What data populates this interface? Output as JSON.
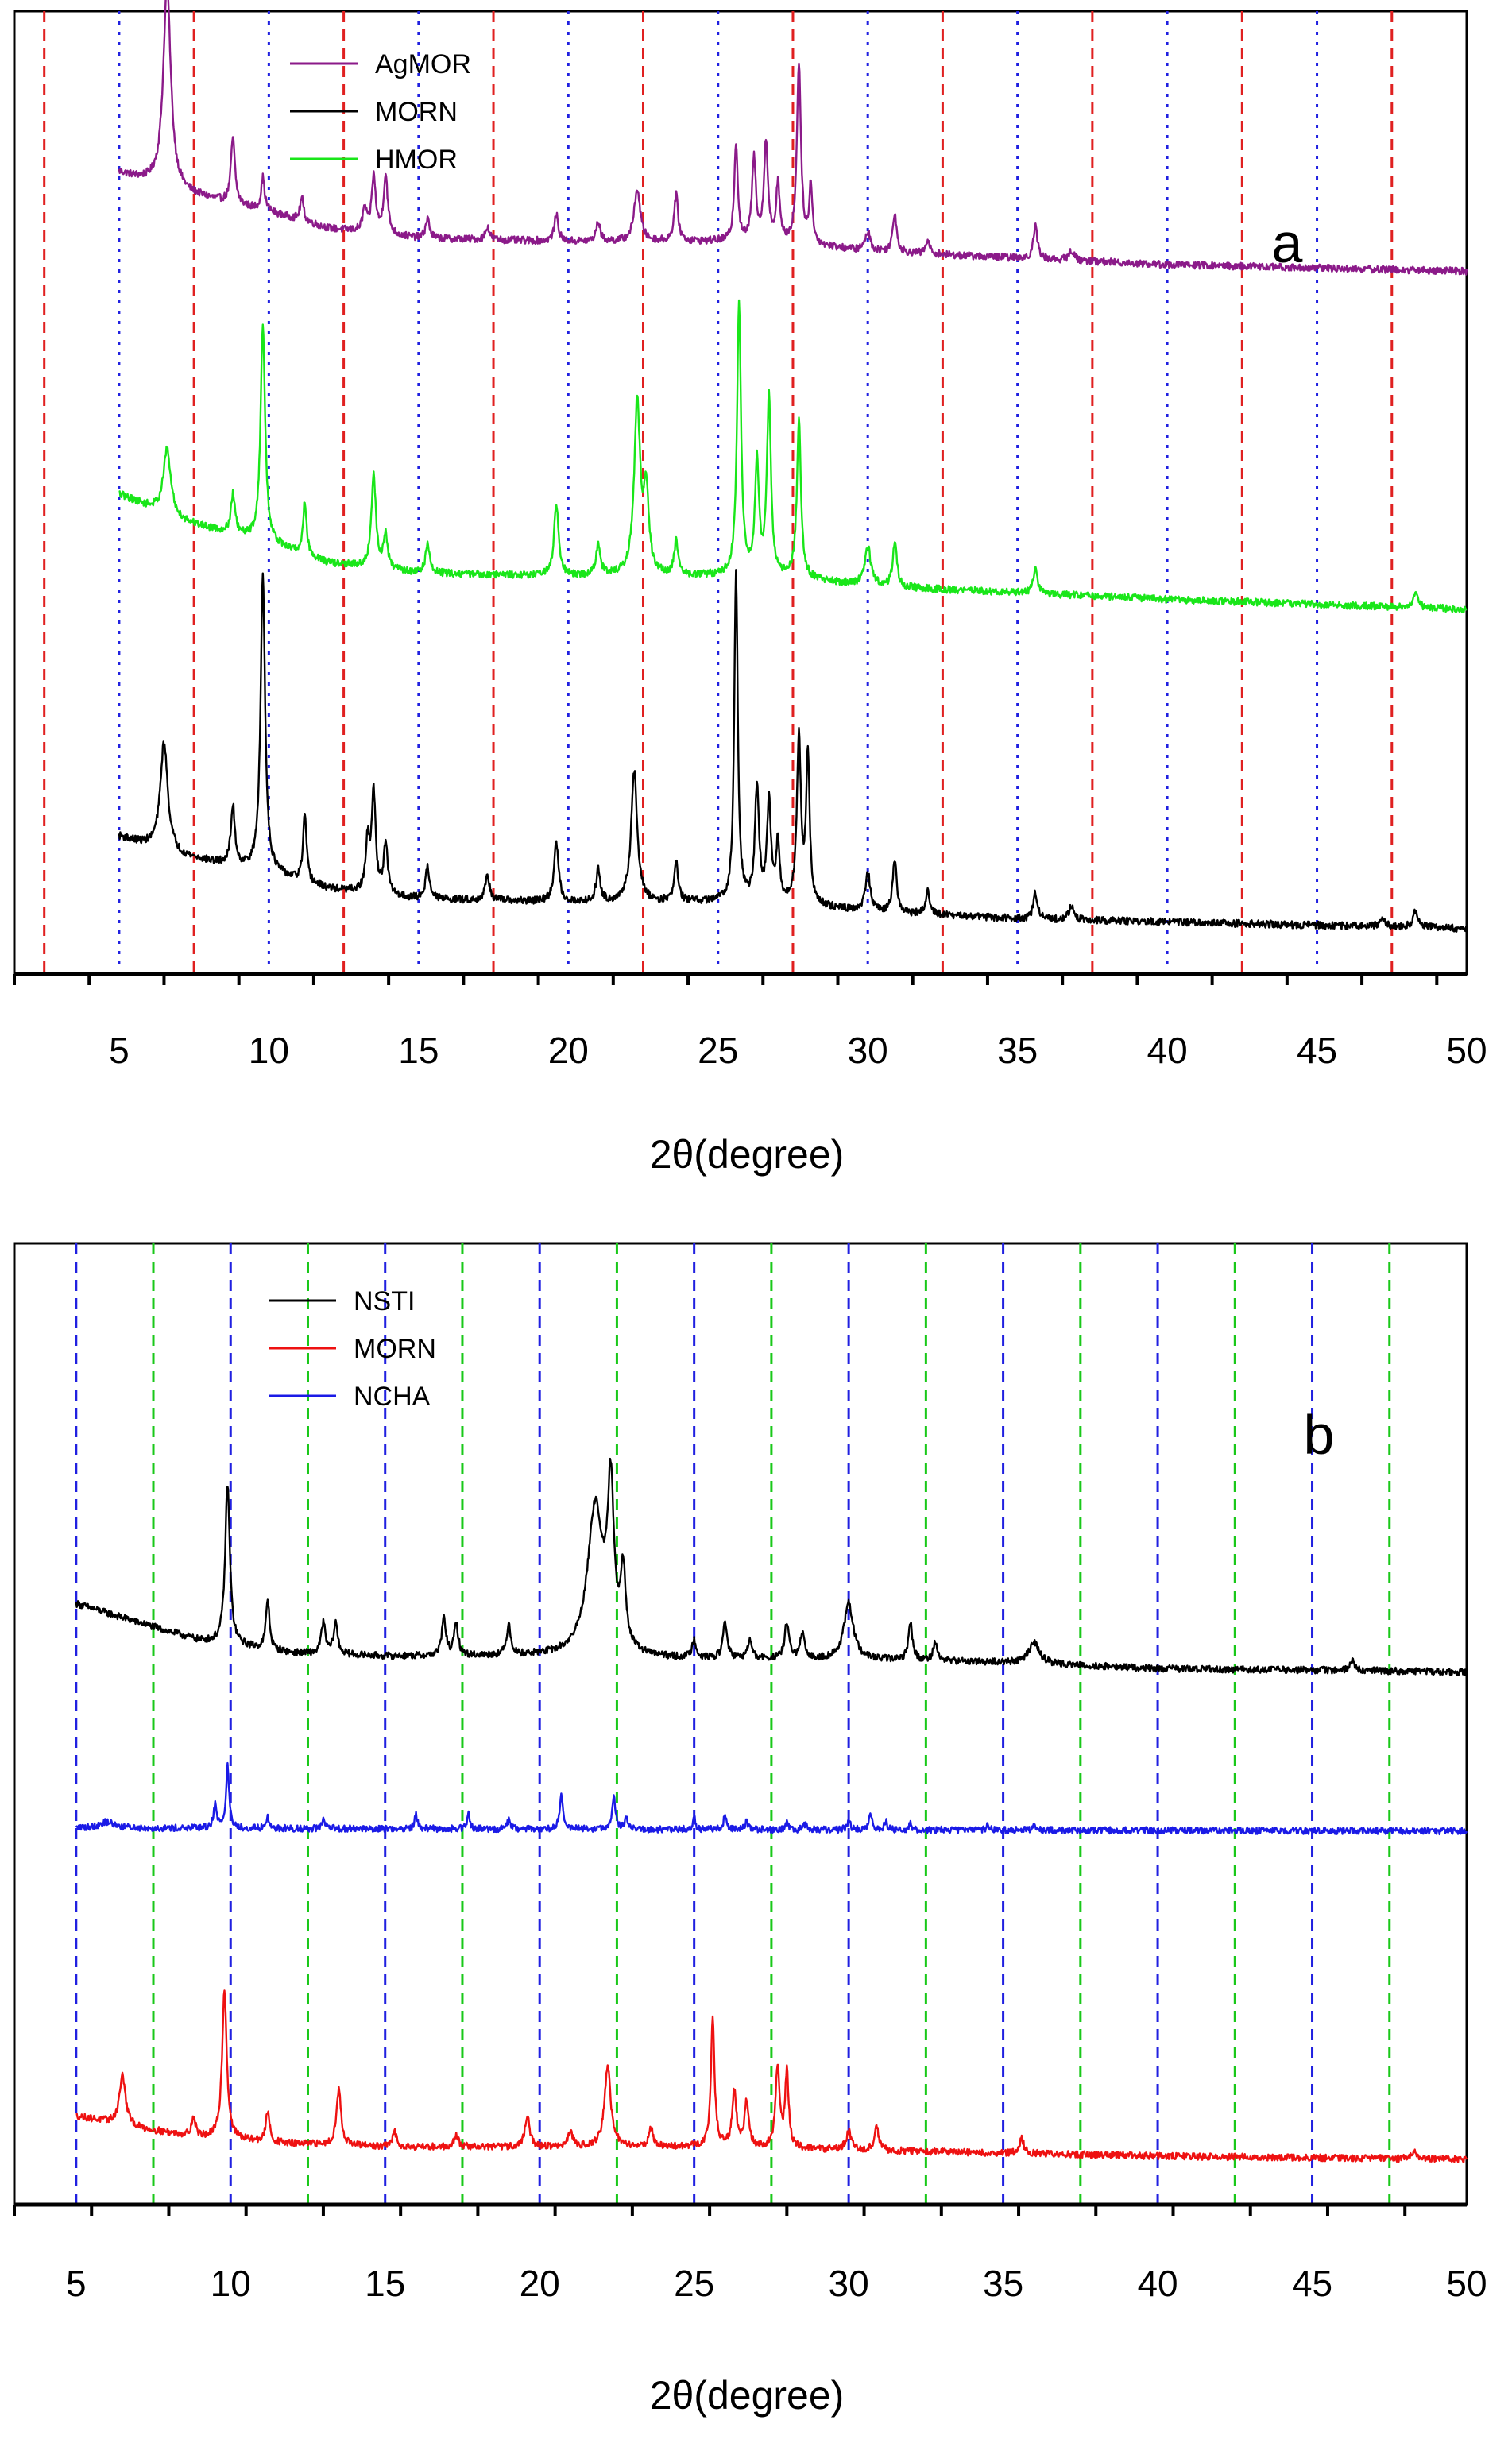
{
  "chart_data": [
    {
      "panel": "a",
      "type": "line",
      "label": "a",
      "xlabel": "2θ(degree)",
      "ylabel": "",
      "xlim": [
        1.5,
        50
      ],
      "x_ticks": [
        5,
        10,
        15,
        20,
        25,
        30,
        35,
        40,
        45,
        50
      ],
      "x_tick_labels": [
        "5",
        "10",
        "15",
        "20",
        "25",
        "30",
        "35",
        "40",
        "45",
        "50"
      ],
      "legend_position": "top-left",
      "reference_lines": [
        {
          "color": "#e02020",
          "style": "dashed",
          "x": [
            2.5,
            7.5,
            12.5,
            17.5,
            22.5,
            27.5,
            32.5,
            37.5,
            42.5,
            47.5
          ]
        },
        {
          "color": "#2020e0",
          "style": "dotted",
          "x": [
            5,
            10,
            15,
            20,
            25,
            30,
            35,
            40,
            45
          ]
        }
      ],
      "series": [
        {
          "name": "AgMOR",
          "color": "#8b1a89",
          "offset": 0.74,
          "scale": 0.35,
          "base": [
            [
              5,
              0.3
            ],
            [
              7,
              0.24
            ],
            [
              10,
              0.18
            ],
            [
              12,
              0.13
            ],
            [
              15,
              0.1
            ],
            [
              20,
              0.09
            ],
            [
              25,
              0.09
            ],
            [
              28,
              0.08
            ],
            [
              30,
              0.06
            ],
            [
              35,
              0.04
            ],
            [
              40,
              0.02
            ],
            [
              50,
              0.0
            ]
          ],
          "peaks": [
            [
              6.6,
              0.62,
              0.15
            ],
            [
              8.8,
              0.2,
              0.08
            ],
            [
              9.8,
              0.1,
              0.07
            ],
            [
              11.1,
              0.07,
              0.07
            ],
            [
              13.2,
              0.07,
              0.08
            ],
            [
              13.5,
              0.17,
              0.08
            ],
            [
              13.9,
              0.18,
              0.08
            ],
            [
              15.3,
              0.06,
              0.08
            ],
            [
              17.3,
              0.04,
              0.08
            ],
            [
              19.6,
              0.08,
              0.08
            ],
            [
              21.0,
              0.06,
              0.08
            ],
            [
              22.3,
              0.16,
              0.12
            ],
            [
              23.6,
              0.14,
              0.08
            ],
            [
              25.6,
              0.3,
              0.07
            ],
            [
              26.2,
              0.25,
              0.08
            ],
            [
              26.6,
              0.3,
              0.08
            ],
            [
              27.0,
              0.18,
              0.07
            ],
            [
              27.7,
              0.55,
              0.08
            ],
            [
              28.1,
              0.18,
              0.06
            ],
            [
              30.0,
              0.06,
              0.1
            ],
            [
              30.9,
              0.12,
              0.08
            ],
            [
              32.0,
              0.04,
              0.08
            ],
            [
              35.6,
              0.1,
              0.08
            ],
            [
              36.8,
              0.03,
              0.1
            ]
          ]
        },
        {
          "name": "MORN",
          "color": "#000000",
          "offset": 0.04,
          "scale": 0.35,
          "base": [
            [
              5,
              0.28
            ],
            [
              7,
              0.22
            ],
            [
              10,
              0.17
            ],
            [
              12,
              0.12
            ],
            [
              15,
              0.09
            ],
            [
              20,
              0.08
            ],
            [
              25,
              0.08
            ],
            [
              28,
              0.07
            ],
            [
              30,
              0.05
            ],
            [
              35,
              0.03
            ],
            [
              40,
              0.02
            ],
            [
              50,
              0.0
            ]
          ],
          "peaks": [
            [
              6.5,
              0.33,
              0.15
            ],
            [
              8.8,
              0.18,
              0.08
            ],
            [
              9.8,
              0.9,
              0.09
            ],
            [
              11.2,
              0.2,
              0.07
            ],
            [
              13.3,
              0.15,
              0.08
            ],
            [
              13.5,
              0.3,
              0.08
            ],
            [
              13.9,
              0.15,
              0.08
            ],
            [
              15.3,
              0.1,
              0.08
            ],
            [
              17.3,
              0.08,
              0.08
            ],
            [
              19.6,
              0.18,
              0.09
            ],
            [
              21.0,
              0.1,
              0.08
            ],
            [
              22.2,
              0.4,
              0.12
            ],
            [
              23.6,
              0.12,
              0.08
            ],
            [
              25.6,
              1.0,
              0.07
            ],
            [
              26.3,
              0.35,
              0.08
            ],
            [
              26.7,
              0.3,
              0.08
            ],
            [
              27.0,
              0.18,
              0.07
            ],
            [
              27.7,
              0.5,
              0.08
            ],
            [
              28.0,
              0.45,
              0.07
            ],
            [
              30.0,
              0.12,
              0.1
            ],
            [
              30.9,
              0.16,
              0.08
            ],
            [
              32.0,
              0.07,
              0.08
            ],
            [
              35.6,
              0.08,
              0.08
            ],
            [
              36.8,
              0.04,
              0.1
            ],
            [
              47.2,
              0.03,
              0.1
            ],
            [
              48.3,
              0.05,
              0.1
            ]
          ]
        },
        {
          "name": "HMOR",
          "color": "#19e619",
          "offset": 0.38,
          "scale": 0.35,
          "base": [
            [
              5,
              0.35
            ],
            [
              7,
              0.27
            ],
            [
              10,
              0.2
            ],
            [
              12,
              0.14
            ],
            [
              15,
              0.11
            ],
            [
              20,
              0.1
            ],
            [
              25,
              0.1
            ],
            [
              28,
              0.09
            ],
            [
              30,
              0.07
            ],
            [
              35,
              0.05
            ],
            [
              40,
              0.03
            ],
            [
              50,
              0.0
            ]
          ],
          "peaks": [
            [
              6.6,
              0.2,
              0.15
            ],
            [
              8.8,
              0.12,
              0.08
            ],
            [
              9.8,
              0.66,
              0.09
            ],
            [
              11.2,
              0.16,
              0.07
            ],
            [
              13.5,
              0.28,
              0.09
            ],
            [
              13.9,
              0.1,
              0.08
            ],
            [
              15.3,
              0.09,
              0.08
            ],
            [
              19.6,
              0.22,
              0.09
            ],
            [
              21.0,
              0.1,
              0.08
            ],
            [
              22.3,
              0.52,
              0.12
            ],
            [
              22.6,
              0.25,
              0.1
            ],
            [
              23.6,
              0.1,
              0.08
            ],
            [
              25.7,
              0.82,
              0.08
            ],
            [
              26.3,
              0.35,
              0.08
            ],
            [
              26.7,
              0.55,
              0.08
            ],
            [
              27.7,
              0.48,
              0.08
            ],
            [
              30.0,
              0.12,
              0.12
            ],
            [
              30.9,
              0.14,
              0.08
            ],
            [
              35.6,
              0.08,
              0.08
            ],
            [
              48.3,
              0.04,
              0.1
            ]
          ]
        }
      ]
    },
    {
      "panel": "b",
      "type": "line",
      "label": "b",
      "xlabel": "2θ(degree)",
      "ylabel": "",
      "xlim": [
        3,
        50
      ],
      "x_ticks": [
        5,
        10,
        15,
        20,
        25,
        30,
        35,
        40,
        45,
        50
      ],
      "x_tick_labels": [
        "5",
        "10",
        "15",
        "20",
        "25",
        "30",
        "35",
        "40",
        "45",
        "50"
      ],
      "legend_position": "top-left",
      "reference_lines": [
        {
          "color": "#2020e0",
          "style": "dashed",
          "x": [
            5,
            10,
            15,
            20,
            25,
            30,
            35,
            40,
            45
          ]
        },
        {
          "color": "#19c819",
          "style": "dashed",
          "x": [
            7.5,
            12.5,
            17.5,
            22.5,
            27.5,
            32.5,
            37.5,
            42.5,
            47.5
          ]
        }
      ],
      "series": [
        {
          "name": "NSTI",
          "color": "#000000",
          "offset": 0.56,
          "scale": 0.33,
          "base": [
            [
              5,
              0.22
            ],
            [
              7,
              0.16
            ],
            [
              9,
              0.1
            ],
            [
              12,
              0.06
            ],
            [
              15,
              0.05
            ],
            [
              20,
              0.05
            ],
            [
              25,
              0.04
            ],
            [
              30,
              0.04
            ],
            [
              35,
              0.03
            ],
            [
              40,
              0.01
            ],
            [
              50,
              0.0
            ]
          ],
          "peaks": [
            [
              9.9,
              0.52,
              0.09
            ],
            [
              11.2,
              0.16,
              0.07
            ],
            [
              13.0,
              0.1,
              0.08
            ],
            [
              13.4,
              0.1,
              0.08
            ],
            [
              16.9,
              0.12,
              0.08
            ],
            [
              17.3,
              0.1,
              0.08
            ],
            [
              19.0,
              0.1,
              0.08
            ],
            [
              21.8,
              0.48,
              0.3
            ],
            [
              22.3,
              0.5,
              0.12
            ],
            [
              22.7,
              0.25,
              0.1
            ],
            [
              25.0,
              0.06,
              0.08
            ],
            [
              26.0,
              0.12,
              0.08
            ],
            [
              26.8,
              0.06,
              0.08
            ],
            [
              28.0,
              0.12,
              0.08
            ],
            [
              28.5,
              0.08,
              0.08
            ],
            [
              30.0,
              0.18,
              0.18
            ],
            [
              32.0,
              0.12,
              0.08
            ],
            [
              32.8,
              0.06,
              0.08
            ],
            [
              36.0,
              0.07,
              0.2
            ],
            [
              46.3,
              0.03,
              0.1
            ]
          ]
        },
        {
          "name": "MORN",
          "color": "#ee1111",
          "offset": 0.04,
          "scale": 0.33,
          "base": [
            [
              5,
              0.14
            ],
            [
              7,
              0.1
            ],
            [
              9,
              0.07
            ],
            [
              12,
              0.05
            ],
            [
              15,
              0.04
            ],
            [
              20,
              0.04
            ],
            [
              25,
              0.04
            ],
            [
              30,
              0.03
            ],
            [
              35,
              0.02
            ],
            [
              40,
              0.01
            ],
            [
              50,
              0.0
            ]
          ],
          "peaks": [
            [
              6.5,
              0.16,
              0.12
            ],
            [
              8.8,
              0.06,
              0.08
            ],
            [
              9.8,
              0.48,
              0.09
            ],
            [
              11.2,
              0.1,
              0.07
            ],
            [
              13.5,
              0.18,
              0.09
            ],
            [
              15.3,
              0.05,
              0.08
            ],
            [
              17.3,
              0.04,
              0.08
            ],
            [
              19.6,
              0.1,
              0.09
            ],
            [
              21.0,
              0.05,
              0.08
            ],
            [
              22.2,
              0.26,
              0.12
            ],
            [
              23.6,
              0.06,
              0.08
            ],
            [
              25.6,
              0.42,
              0.07
            ],
            [
              26.3,
              0.18,
              0.08
            ],
            [
              26.7,
              0.15,
              0.08
            ],
            [
              27.7,
              0.26,
              0.08
            ],
            [
              28.0,
              0.24,
              0.07
            ],
            [
              30.0,
              0.06,
              0.1
            ],
            [
              30.9,
              0.08,
              0.08
            ],
            [
              35.6,
              0.05,
              0.08
            ],
            [
              48.3,
              0.02,
              0.1
            ]
          ]
        },
        {
          "name": "NCHA",
          "color": "#1a1ae6",
          "offset": 0.39,
          "scale": 0.33,
          "base": [
            [
              5,
              0.01
            ],
            [
              50,
              0.0
            ]
          ],
          "peaks": [
            [
              6.0,
              0.02,
              0.3
            ],
            [
              9.5,
              0.08,
              0.06
            ],
            [
              9.9,
              0.2,
              0.06
            ],
            [
              11.2,
              0.04,
              0.05
            ],
            [
              13.0,
              0.03,
              0.05
            ],
            [
              16.0,
              0.05,
              0.05
            ],
            [
              17.7,
              0.05,
              0.05
            ],
            [
              19.0,
              0.03,
              0.05
            ],
            [
              20.7,
              0.12,
              0.06
            ],
            [
              22.4,
              0.11,
              0.06
            ],
            [
              22.8,
              0.04,
              0.05
            ],
            [
              25.0,
              0.04,
              0.05
            ],
            [
              26.0,
              0.05,
              0.05
            ],
            [
              26.7,
              0.03,
              0.05
            ],
            [
              28.0,
              0.02,
              0.05
            ],
            [
              28.6,
              0.02,
              0.05
            ],
            [
              30.0,
              0.03,
              0.06
            ],
            [
              30.7,
              0.06,
              0.06
            ],
            [
              31.2,
              0.03,
              0.05
            ],
            [
              32.0,
              0.02,
              0.05
            ],
            [
              34.5,
              0.02,
              0.05
            ],
            [
              36.0,
              0.02,
              0.05
            ]
          ]
        }
      ]
    }
  ]
}
